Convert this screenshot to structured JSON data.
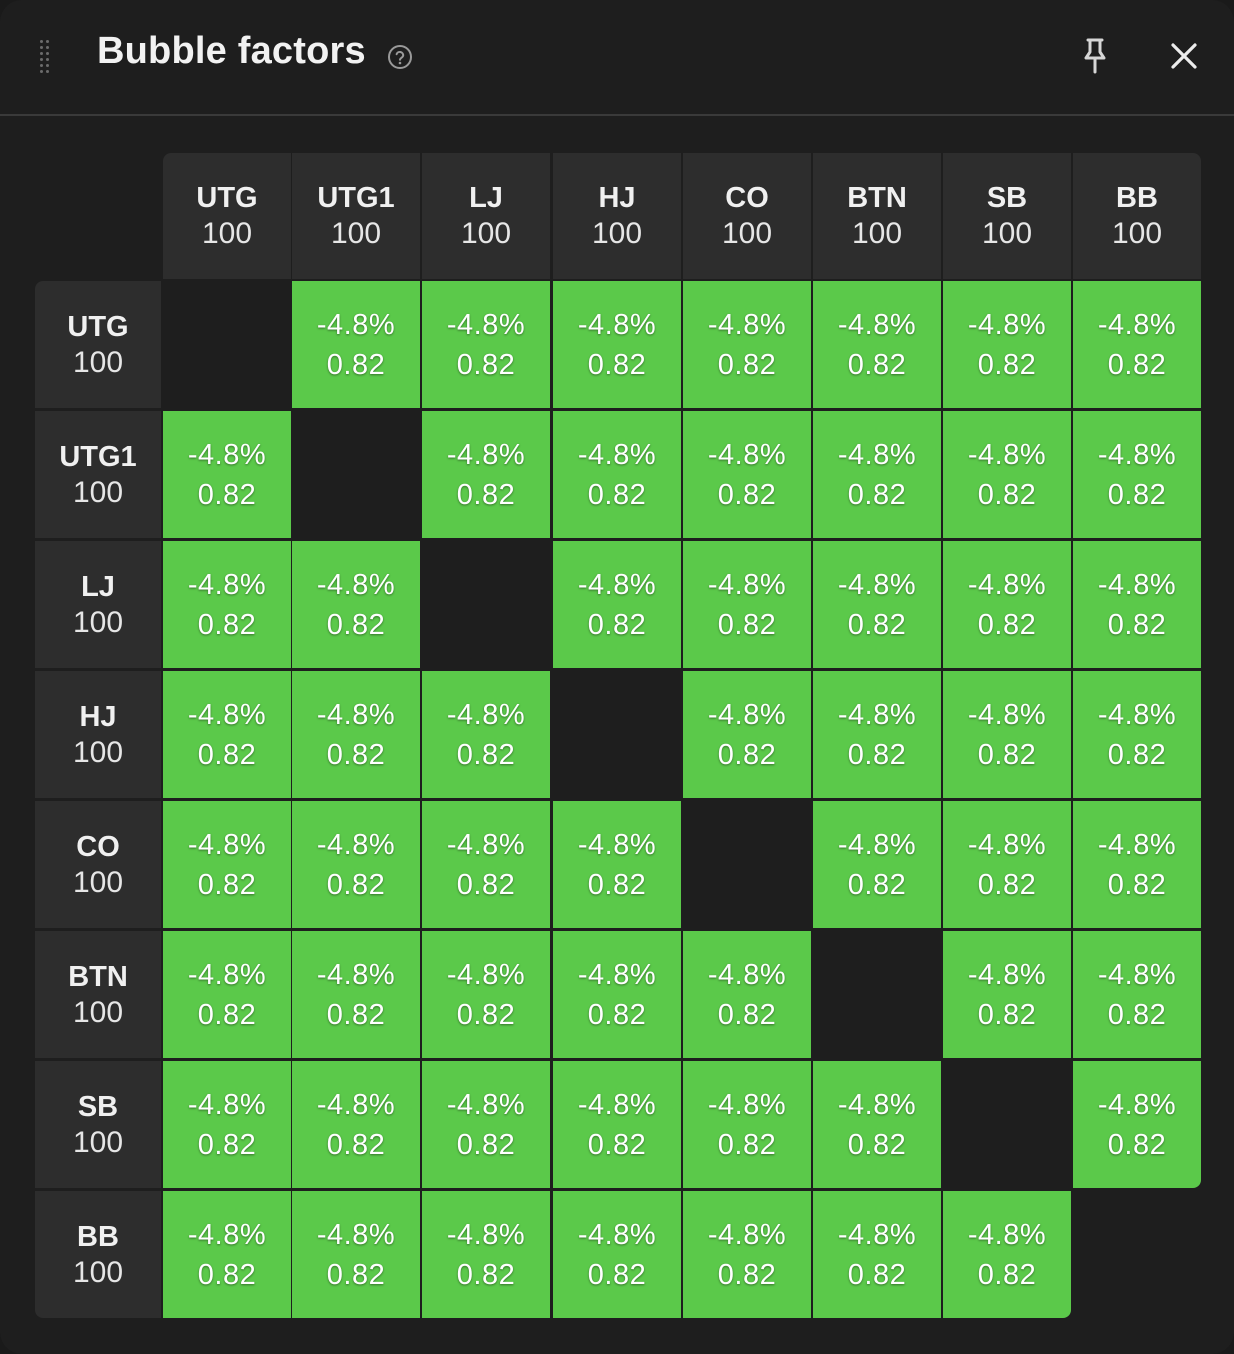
{
  "window": {
    "title": "Bubble factors",
    "icons": {
      "drag": "drag-handle-icon",
      "help": "help-circle-icon",
      "pin": "pin-icon",
      "close": "close-icon"
    }
  },
  "colors": {
    "panel_bg": "#1e1e1e",
    "header_cell_bg": "#2d2d2d",
    "value_cell_bg": "#5bc94a",
    "text": "#f2f2f2"
  },
  "players": [
    {
      "position": "UTG",
      "stack": "100"
    },
    {
      "position": "UTG1",
      "stack": "100"
    },
    {
      "position": "LJ",
      "stack": "100"
    },
    {
      "position": "HJ",
      "stack": "100"
    },
    {
      "position": "CO",
      "stack": "100"
    },
    {
      "position": "BTN",
      "stack": "100"
    },
    {
      "position": "SB",
      "stack": "100"
    },
    {
      "position": "BB",
      "stack": "100"
    }
  ],
  "matrix": [
    [
      null,
      {
        "pct": "-4.8%",
        "factor": "0.82"
      },
      {
        "pct": "-4.8%",
        "factor": "0.82"
      },
      {
        "pct": "-4.8%",
        "factor": "0.82"
      },
      {
        "pct": "-4.8%",
        "factor": "0.82"
      },
      {
        "pct": "-4.8%",
        "factor": "0.82"
      },
      {
        "pct": "-4.8%",
        "factor": "0.82"
      },
      {
        "pct": "-4.8%",
        "factor": "0.82"
      }
    ],
    [
      {
        "pct": "-4.8%",
        "factor": "0.82"
      },
      null,
      {
        "pct": "-4.8%",
        "factor": "0.82"
      },
      {
        "pct": "-4.8%",
        "factor": "0.82"
      },
      {
        "pct": "-4.8%",
        "factor": "0.82"
      },
      {
        "pct": "-4.8%",
        "factor": "0.82"
      },
      {
        "pct": "-4.8%",
        "factor": "0.82"
      },
      {
        "pct": "-4.8%",
        "factor": "0.82"
      }
    ],
    [
      {
        "pct": "-4.8%",
        "factor": "0.82"
      },
      {
        "pct": "-4.8%",
        "factor": "0.82"
      },
      null,
      {
        "pct": "-4.8%",
        "factor": "0.82"
      },
      {
        "pct": "-4.8%",
        "factor": "0.82"
      },
      {
        "pct": "-4.8%",
        "factor": "0.82"
      },
      {
        "pct": "-4.8%",
        "factor": "0.82"
      },
      {
        "pct": "-4.8%",
        "factor": "0.82"
      }
    ],
    [
      {
        "pct": "-4.8%",
        "factor": "0.82"
      },
      {
        "pct": "-4.8%",
        "factor": "0.82"
      },
      {
        "pct": "-4.8%",
        "factor": "0.82"
      },
      null,
      {
        "pct": "-4.8%",
        "factor": "0.82"
      },
      {
        "pct": "-4.8%",
        "factor": "0.82"
      },
      {
        "pct": "-4.8%",
        "factor": "0.82"
      },
      {
        "pct": "-4.8%",
        "factor": "0.82"
      }
    ],
    [
      {
        "pct": "-4.8%",
        "factor": "0.82"
      },
      {
        "pct": "-4.8%",
        "factor": "0.82"
      },
      {
        "pct": "-4.8%",
        "factor": "0.82"
      },
      {
        "pct": "-4.8%",
        "factor": "0.82"
      },
      null,
      {
        "pct": "-4.8%",
        "factor": "0.82"
      },
      {
        "pct": "-4.8%",
        "factor": "0.82"
      },
      {
        "pct": "-4.8%",
        "factor": "0.82"
      }
    ],
    [
      {
        "pct": "-4.8%",
        "factor": "0.82"
      },
      {
        "pct": "-4.8%",
        "factor": "0.82"
      },
      {
        "pct": "-4.8%",
        "factor": "0.82"
      },
      {
        "pct": "-4.8%",
        "factor": "0.82"
      },
      {
        "pct": "-4.8%",
        "factor": "0.82"
      },
      null,
      {
        "pct": "-4.8%",
        "factor": "0.82"
      },
      {
        "pct": "-4.8%",
        "factor": "0.82"
      }
    ],
    [
      {
        "pct": "-4.8%",
        "factor": "0.82"
      },
      {
        "pct": "-4.8%",
        "factor": "0.82"
      },
      {
        "pct": "-4.8%",
        "factor": "0.82"
      },
      {
        "pct": "-4.8%",
        "factor": "0.82"
      },
      {
        "pct": "-4.8%",
        "factor": "0.82"
      },
      {
        "pct": "-4.8%",
        "factor": "0.82"
      },
      null,
      {
        "pct": "-4.8%",
        "factor": "0.82"
      }
    ],
    [
      {
        "pct": "-4.8%",
        "factor": "0.82"
      },
      {
        "pct": "-4.8%",
        "factor": "0.82"
      },
      {
        "pct": "-4.8%",
        "factor": "0.82"
      },
      {
        "pct": "-4.8%",
        "factor": "0.82"
      },
      {
        "pct": "-4.8%",
        "factor": "0.82"
      },
      {
        "pct": "-4.8%",
        "factor": "0.82"
      },
      {
        "pct": "-4.8%",
        "factor": "0.82"
      },
      null
    ]
  ]
}
